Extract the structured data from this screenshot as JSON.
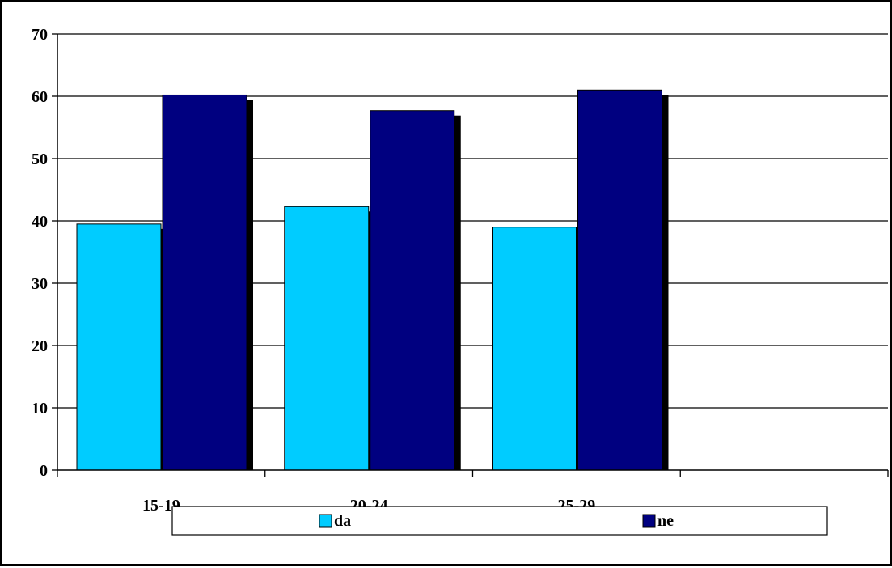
{
  "colors": {
    "series_da": "#00CCFF",
    "series_ne": "#000080",
    "shadow": "#000000",
    "gridline": "#000000",
    "background": "#FFFFFF"
  },
  "chart_data": {
    "type": "bar",
    "categories": [
      "15-19",
      "20-24",
      "25-29",
      ""
    ],
    "series": [
      {
        "name": "da",
        "values": [
          39.5,
          42.3,
          39.0,
          null
        ]
      },
      {
        "name": "ne",
        "values": [
          60.2,
          57.7,
          61.0,
          null
        ]
      }
    ],
    "ylim": [
      0,
      70
    ],
    "yticks": [
      0,
      10,
      20,
      30,
      40,
      50,
      60,
      70
    ],
    "grid": true,
    "legend_position": "bottom",
    "title": "",
    "xlabel": "",
    "ylabel": ""
  }
}
